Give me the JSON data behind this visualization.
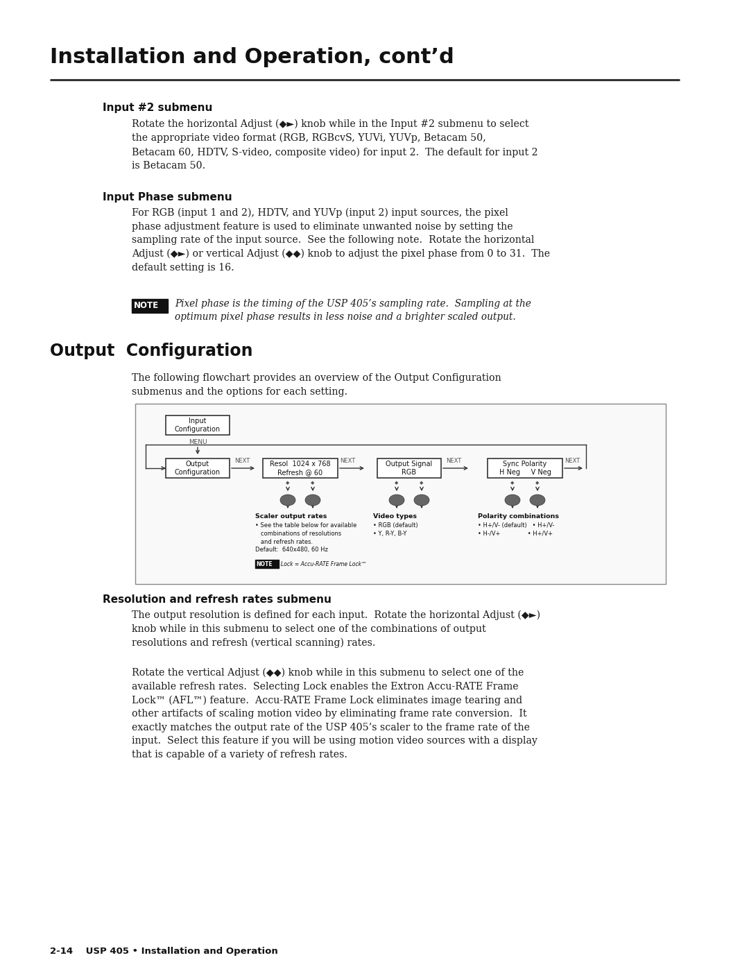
{
  "bg_color": "#ffffff",
  "title": "Installation and Operation, cont’d",
  "section1_head": "Input #2 submenu",
  "section1_body": "Rotate the horizontal Adjust (◆►) knob while in the Input #2 submenu to select\nthe appropriate video format (RGB, RGBcvS, YUVi, YUVp, Betacam 50,\nBetacam 60, HDTV, S-video, composite video) for input 2.  The default for input 2\nis Betacam 50.",
  "section2_head": "Input Phase submenu",
  "section2_body": "For RGB (input 1 and 2), HDTV, and YUVp (input 2) input sources, the pixel\nphase adjustment feature is used to eliminate unwanted noise by setting the\nsampling rate of the input source.  See the following note.  Rotate the horizontal\nAdjust (◆►) or vertical Adjust (◆◆) knob to adjust the pixel phase from 0 to 31.  The\ndefault setting is 16.",
  "note_label": "NOTE",
  "note_text": "Pixel phase is the timing of the USP 405’s sampling rate.  Sampling at the\noptimum pixel phase results in less noise and a brighter scaled output.",
  "output_config_head": "Output  Configuration",
  "output_config_body": "The following flowchart provides an overview of the Output Configuration\nsubmenus and the options for each setting.",
  "section3_head": "Resolution and refresh rates submenu",
  "section3_body1": "The output resolution is defined for each input.  Rotate the horizontal Adjust (◆►)\nknob while in this submenu to select one of the combinations of output\nresolutions and refresh (vertical scanning) rates.",
  "section3_body2": "Rotate the vertical Adjust (◆◆) knob while in this submenu to select one of the\navailable refresh rates.  Selecting Lock enables the Extron Accu-RATE Frame\nLock™ (AFL™) feature.  Accu-RATE Frame Lock eliminates image tearing and\nother artifacts of scaling motion video by eliminating frame rate conversion.  It\nexactly matches the output rate of the USP 405’s scaler to the frame rate of the\ninput.  Select this feature if you will be using motion video sources with a display\nthat is capable of a variety of refresh rates.",
  "footer": "2-14    USP 405 • Installation and Operation",
  "text_color": "#1a1a1a",
  "head_color": "#111111",
  "fc_box_color": "#111111",
  "fc_text_color": "#111111",
  "fc_bg": "#ffffff",
  "fc_border": "#444444"
}
